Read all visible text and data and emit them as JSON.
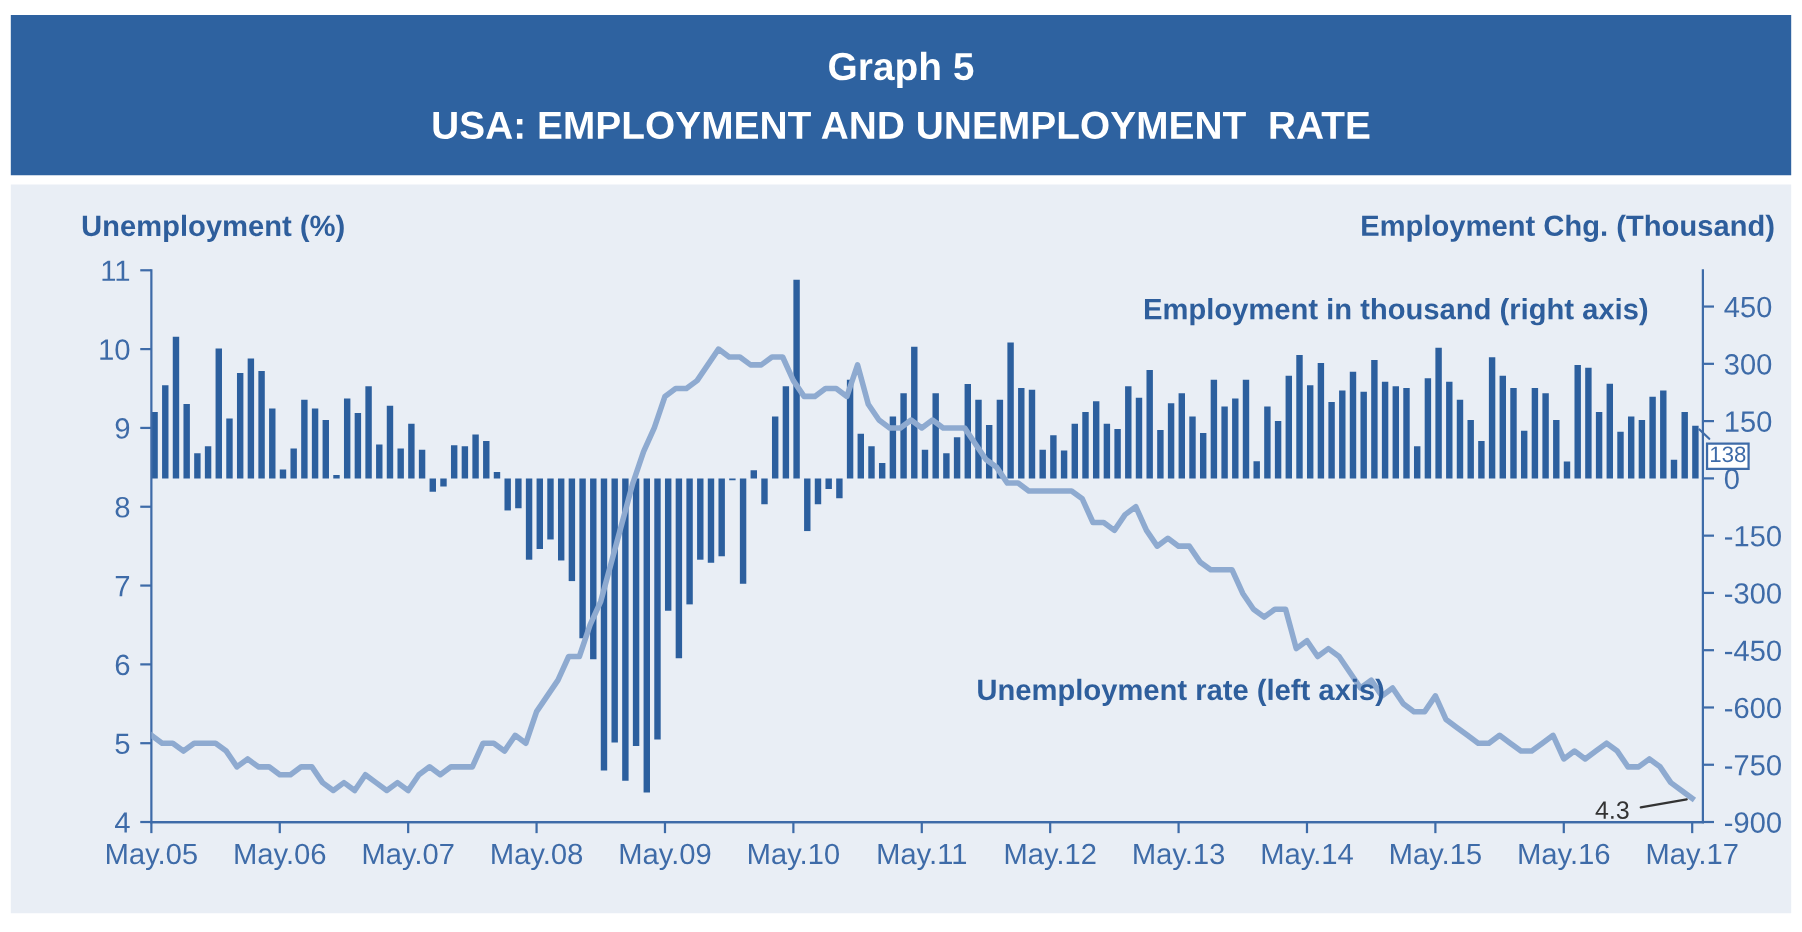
{
  "chart_data": {
    "type": "bar",
    "title": "Graph 5",
    "subtitle": "USA: EMPLOYMENT AND UNEMPLOYMENT  RATE",
    "ylabel": "Unemployment (%)",
    "y2label": "Employment Chg. (Thousand)",
    "x": [
      "2005-05",
      "2005-06",
      "2005-07",
      "2005-08",
      "2005-09",
      "2005-10",
      "2005-11",
      "2005-12",
      "2006-01",
      "2006-02",
      "2006-03",
      "2006-04",
      "2006-05",
      "2006-06",
      "2006-07",
      "2006-08",
      "2006-09",
      "2006-10",
      "2006-11",
      "2006-12",
      "2007-01",
      "2007-02",
      "2007-03",
      "2007-04",
      "2007-05",
      "2007-06",
      "2007-07",
      "2007-08",
      "2007-09",
      "2007-10",
      "2007-11",
      "2007-12",
      "2008-01",
      "2008-02",
      "2008-03",
      "2008-04",
      "2008-05",
      "2008-06",
      "2008-07",
      "2008-08",
      "2008-09",
      "2008-10",
      "2008-11",
      "2008-12",
      "2009-01",
      "2009-02",
      "2009-03",
      "2009-04",
      "2009-05",
      "2009-06",
      "2009-07",
      "2009-08",
      "2009-09",
      "2009-10",
      "2009-11",
      "2009-12",
      "2010-01",
      "2010-02",
      "2010-03",
      "2010-04",
      "2010-05",
      "2010-06",
      "2010-07",
      "2010-08",
      "2010-09",
      "2010-10",
      "2010-11",
      "2010-12",
      "2011-01",
      "2011-02",
      "2011-03",
      "2011-04",
      "2011-05",
      "2011-06",
      "2011-07",
      "2011-08",
      "2011-09",
      "2011-10",
      "2011-11",
      "2011-12",
      "2012-01",
      "2012-02",
      "2012-03",
      "2012-04",
      "2012-05",
      "2012-06",
      "2012-07",
      "2012-08",
      "2012-09",
      "2012-10",
      "2012-11",
      "2012-12",
      "2013-01",
      "2013-02",
      "2013-03",
      "2013-04",
      "2013-05",
      "2013-06",
      "2013-07",
      "2013-08",
      "2013-09",
      "2013-10",
      "2013-11",
      "2013-12",
      "2014-01",
      "2014-02",
      "2014-03",
      "2014-04",
      "2014-05",
      "2014-06",
      "2014-07",
      "2014-08",
      "2014-09",
      "2014-10",
      "2014-11",
      "2014-12",
      "2015-01",
      "2015-02",
      "2015-03",
      "2015-04",
      "2015-05",
      "2015-06",
      "2015-07",
      "2015-08",
      "2015-09",
      "2015-10",
      "2015-11",
      "2015-12",
      "2016-01",
      "2016-02",
      "2016-03",
      "2016-04",
      "2016-05",
      "2016-06",
      "2016-07",
      "2016-08",
      "2016-09",
      "2016-10",
      "2016-11",
      "2016-12",
      "2017-01",
      "2017-02",
      "2017-03",
      "2017-04",
      "2017-05"
    ],
    "xlim": [
      "2005-05",
      "2017-06"
    ],
    "xticks": [
      {
        "value": "2005-05",
        "label": "May.05"
      },
      {
        "value": "2006-05",
        "label": "May.06"
      },
      {
        "value": "2007-05",
        "label": "May.07"
      },
      {
        "value": "2008-05",
        "label": "May.08"
      },
      {
        "value": "2009-05",
        "label": "May.09"
      },
      {
        "value": "2010-05",
        "label": "May.10"
      },
      {
        "value": "2011-05",
        "label": "May.11"
      },
      {
        "value": "2012-05",
        "label": "May.12"
      },
      {
        "value": "2013-05",
        "label": "May.13"
      },
      {
        "value": "2014-05",
        "label": "May.14"
      },
      {
        "value": "2015-05",
        "label": "May.15"
      },
      {
        "value": "2016-05",
        "label": "May.16"
      },
      {
        "value": "2017-05",
        "label": "May.17"
      }
    ],
    "ylim": [
      4,
      11
    ],
    "yticks": [
      4,
      5,
      6,
      7,
      8,
      9,
      10,
      11
    ],
    "y2lim": [
      -900,
      545
    ],
    "y2ticks": [
      -900,
      -750,
      -600,
      -450,
      -300,
      -150,
      0,
      150,
      300,
      450
    ],
    "grid": false,
    "legend": false,
    "series": [
      {
        "name": "Employment in thousand (right axis)",
        "axis": "y2",
        "color": "#2c5f9e",
        "values": [
          174,
          244,
          371,
          195,
          66,
          84,
          340,
          157,
          276,
          314,
          281,
          183,
          23,
          78,
          206,
          183,
          153,
          9,
          209,
          171,
          241,
          89,
          190,
          78,
          143,
          75,
          -35,
          -21,
          87,
          84,
          115,
          98,
          17,
          -84,
          -78,
          -213,
          -185,
          -160,
          -215,
          -269,
          -419,
          -474,
          -765,
          -692,
          -792,
          -701,
          -823,
          -684,
          -347,
          -471,
          -330,
          -213,
          -221,
          -204,
          -5,
          -276,
          21,
          -68,
          162,
          241,
          520,
          -138,
          -68,
          -28,
          -52,
          258,
          117,
          84,
          40,
          162,
          223,
          345,
          75,
          223,
          66,
          108,
          247,
          206,
          140,
          206,
          356,
          237,
          232,
          75,
          113,
          73,
          143,
          174,
          202,
          143,
          129,
          241,
          211,
          284,
          127,
          197,
          223,
          162,
          119,
          258,
          188,
          209,
          258,
          45,
          188,
          150,
          269,
          323,
          244,
          302,
          200,
          230,
          279,
          227,
          310,
          253,
          241,
          237,
          84,
          262,
          342,
          253,
          206,
          153,
          98,
          317,
          269,
          237,
          125,
          237,
          223,
          153,
          44,
          297,
          290,
          174,
          248,
          122,
          162,
          153,
          214,
          230,
          49,
          174,
          138
        ],
        "value_labels": [
          null,
          null,
          null,
          null,
          null,
          null,
          null,
          null,
          null,
          null,
          null,
          null,
          null,
          null,
          null,
          null,
          null,
          null,
          null,
          null,
          null,
          null,
          null,
          null,
          null,
          null,
          null,
          null,
          null,
          null,
          null,
          null,
          null,
          null,
          null,
          null,
          null,
          null,
          null,
          null,
          null,
          null,
          null,
          null,
          null,
          null,
          null,
          null,
          null,
          null,
          null,
          null,
          null,
          null,
          null,
          null,
          null,
          null,
          null,
          null,
          null,
          null,
          null,
          null,
          null,
          null,
          null,
          null,
          null,
          null,
          null,
          null,
          null,
          null,
          null,
          null,
          null,
          null,
          null,
          null,
          null,
          null,
          null,
          null,
          null,
          null,
          null,
          null,
          null,
          null,
          null,
          null,
          null,
          null,
          null,
          null,
          null,
          null,
          null,
          null,
          null,
          null,
          null,
          null,
          null,
          null,
          null,
          null,
          null,
          null,
          null,
          null,
          null,
          null,
          null,
          null,
          null,
          null,
          null,
          null,
          null,
          null,
          null,
          null,
          null,
          null,
          null,
          null,
          null,
          null,
          null,
          null,
          null,
          null,
          null,
          null,
          null,
          null,
          null,
          null,
          null,
          null,
          null,
          null,
          "138"
        ]
      },
      {
        "name": "Unemployment rate (left axis)",
        "type": "line",
        "axis": "y",
        "color": "#8eaad0",
        "values": [
          5.1,
          5.0,
          5.0,
          4.9,
          5.0,
          5.0,
          5.0,
          4.9,
          4.7,
          4.8,
          4.7,
          4.7,
          4.6,
          4.6,
          4.7,
          4.7,
          4.5,
          4.4,
          4.5,
          4.4,
          4.6,
          4.5,
          4.4,
          4.5,
          4.4,
          4.6,
          4.7,
          4.6,
          4.7,
          4.7,
          4.7,
          5.0,
          5.0,
          4.9,
          5.1,
          5.0,
          5.4,
          5.6,
          5.8,
          6.1,
          6.1,
          6.5,
          6.8,
          7.3,
          7.8,
          8.3,
          8.7,
          9.0,
          9.4,
          9.5,
          9.5,
          9.6,
          9.8,
          10.0,
          9.9,
          9.9,
          9.8,
          9.8,
          9.9,
          9.9,
          9.6,
          9.4,
          9.4,
          9.5,
          9.5,
          9.4,
          9.8,
          9.3,
          9.1,
          9.0,
          9.0,
          9.1,
          9.0,
          9.1,
          9.0,
          9.0,
          9.0,
          8.8,
          8.6,
          8.5,
          8.3,
          8.3,
          8.2,
          8.2,
          8.2,
          8.2,
          8.2,
          8.1,
          7.8,
          7.8,
          7.7,
          7.9,
          8.0,
          7.7,
          7.5,
          7.6,
          7.5,
          7.5,
          7.3,
          7.2,
          7.2,
          7.2,
          6.9,
          6.7,
          6.6,
          6.7,
          6.7,
          6.2,
          6.3,
          6.1,
          6.2,
          6.1,
          5.9,
          5.7,
          5.8,
          5.6,
          5.7,
          5.5,
          5.4,
          5.4,
          5.6,
          5.3,
          5.2,
          5.1,
          5.0,
          5.0,
          5.1,
          5.0,
          4.9,
          4.9,
          5.0,
          5.1,
          4.8,
          4.9,
          4.8,
          4.9,
          5.0,
          4.9,
          4.7,
          4.7,
          4.8,
          4.7,
          4.5,
          4.4,
          4.3
        ],
        "value_labels": [
          null,
          null,
          null,
          null,
          null,
          null,
          null,
          null,
          null,
          null,
          null,
          null,
          null,
          null,
          null,
          null,
          null,
          null,
          null,
          null,
          null,
          null,
          null,
          null,
          null,
          null,
          null,
          null,
          null,
          null,
          null,
          null,
          null,
          null,
          null,
          null,
          null,
          null,
          null,
          null,
          null,
          null,
          null,
          null,
          null,
          null,
          null,
          null,
          null,
          null,
          null,
          null,
          null,
          null,
          null,
          null,
          null,
          null,
          null,
          null,
          null,
          null,
          null,
          null,
          null,
          null,
          null,
          null,
          null,
          null,
          null,
          null,
          null,
          null,
          null,
          null,
          null,
          null,
          null,
          null,
          null,
          null,
          null,
          null,
          null,
          null,
          null,
          null,
          null,
          null,
          null,
          null,
          null,
          null,
          null,
          null,
          null,
          null,
          null,
          null,
          null,
          null,
          null,
          null,
          null,
          null,
          null,
          null,
          null,
          null,
          null,
          null,
          null,
          null,
          null,
          null,
          null,
          null,
          null,
          null,
          null,
          null,
          null,
          null,
          null,
          null,
          null,
          null,
          null,
          null,
          null,
          null,
          null,
          null,
          null,
          null,
          null,
          null,
          null,
          null,
          null,
          null,
          null,
          null,
          "4.3"
        ]
      }
    ]
  }
}
